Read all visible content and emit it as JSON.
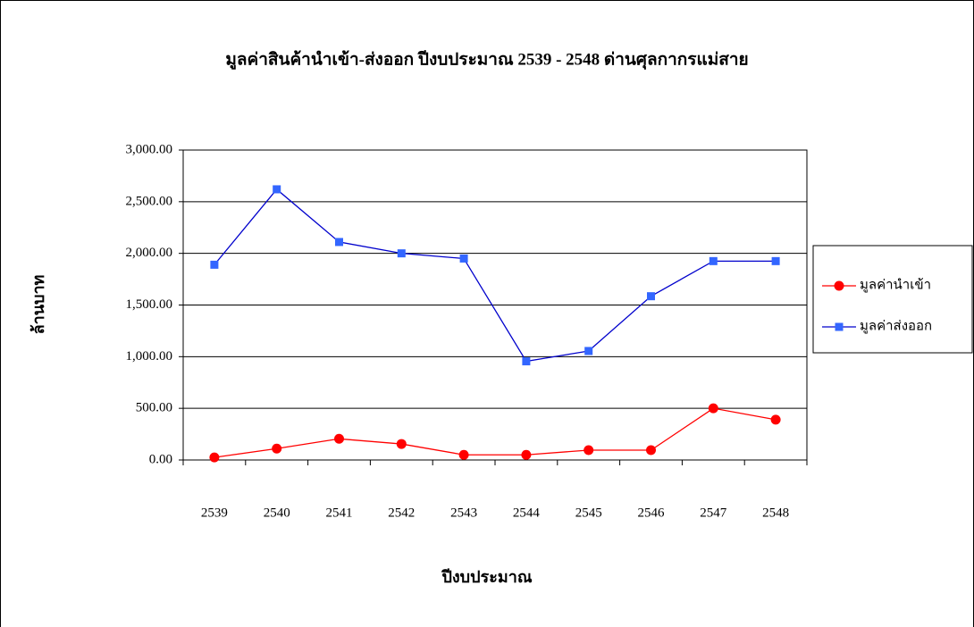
{
  "chart_data": {
    "type": "line",
    "title": "มูลค่าสินค้านำเข้า-ส่งออก ปีงบประมาณ 2539 - 2548 ด่านศุลกากรแม่สาย",
    "x_label": "ปีงบประมาณ",
    "y_label": "ล้านบาท",
    "categories": [
      "2539",
      "2540",
      "2541",
      "2542",
      "2543",
      "2544",
      "2545",
      "2546",
      "2547",
      "2548"
    ],
    "series": [
      {
        "name": "มูลค่านำเข้า",
        "color": "#ff0000",
        "marker": "circle",
        "values": [
          25,
          110,
          205,
          155,
          50,
          50,
          95,
          95,
          500,
          390
        ]
      },
      {
        "name": "มูลค่าส่งออก",
        "color": "#0000cc",
        "marker_color": "#3366ff",
        "marker": "square",
        "values": [
          1890,
          2620,
          2110,
          2000,
          1950,
          955,
          1055,
          1585,
          1925,
          1925
        ]
      }
    ],
    "ylim": [
      0,
      3000
    ],
    "yticks": [
      {
        "value": 0,
        "label": "0.00"
      },
      {
        "value": 500,
        "label": "500.00"
      },
      {
        "value": 1000,
        "label": "1,000.00"
      },
      {
        "value": 1500,
        "label": "1,500.00"
      },
      {
        "value": 2000,
        "label": "2,000.00"
      },
      {
        "value": 2500,
        "label": "2,500.00"
      },
      {
        "value": 3000,
        "label": "3,000.00"
      }
    ],
    "grid": true,
    "legend": "right"
  }
}
